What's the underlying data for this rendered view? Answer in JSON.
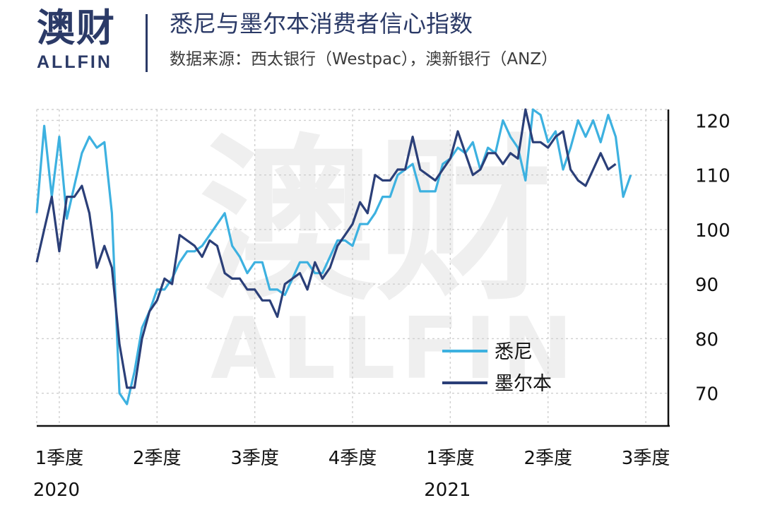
{
  "header": {
    "logo_cn": "澳财",
    "logo_en": "ALLFIN",
    "title": "悉尼与墨尔本消费者信心指数",
    "subtitle": "数据来源：西太银行（Westpac），澳新银行（ANZ）"
  },
  "watermark": {
    "cn": "澳财",
    "en": "ALLFIN"
  },
  "chart_data": {
    "type": "line",
    "title": "悉尼与墨尔本消费者信心指数",
    "ylim": [
      64,
      122
    ],
    "yticks": [
      70,
      80,
      90,
      100,
      110,
      120
    ],
    "grid": true,
    "legend_position": "bottom-right",
    "xticks": [
      {
        "label": "1季度",
        "year": "2020",
        "x": 0
      },
      {
        "label": "2季度",
        "year": "",
        "x": 13
      },
      {
        "label": "3季度",
        "year": "",
        "x": 26
      },
      {
        "label": "4季度",
        "year": "",
        "x": 39
      },
      {
        "label": "1季度",
        "year": "2021",
        "x": 52
      },
      {
        "label": "2季度",
        "year": "",
        "x": 65
      },
      {
        "label": "3季度",
        "year": "",
        "x": 78
      }
    ],
    "colors": {
      "sydney": "#3db1e0",
      "melbourne": "#2b3f78"
    },
    "series": [
      {
        "name": "悉尼",
        "values": [
          [
            -3,
            103
          ],
          [
            -2,
            119
          ],
          [
            -1,
            106
          ],
          [
            0,
            117
          ],
          [
            1,
            102
          ],
          [
            2,
            108
          ],
          [
            3,
            114
          ],
          [
            4,
            117
          ],
          [
            5,
            115
          ],
          [
            6,
            116
          ],
          [
            7,
            103
          ],
          [
            8,
            70
          ],
          [
            9,
            68
          ],
          [
            10,
            74
          ],
          [
            11,
            82
          ],
          [
            12,
            85
          ],
          [
            13,
            89
          ],
          [
            14,
            89
          ],
          [
            15,
            91
          ],
          [
            16,
            94
          ],
          [
            17,
            96
          ],
          [
            18,
            96
          ],
          [
            19,
            97
          ],
          [
            20,
            99
          ],
          [
            21,
            101
          ],
          [
            22,
            103
          ],
          [
            23,
            97
          ],
          [
            24,
            95
          ],
          [
            25,
            92
          ],
          [
            26,
            94
          ],
          [
            27,
            94
          ],
          [
            28,
            89
          ],
          [
            29,
            89
          ],
          [
            30,
            88
          ],
          [
            31,
            91
          ],
          [
            32,
            94
          ],
          [
            33,
            94
          ],
          [
            34,
            92
          ],
          [
            35,
            92
          ],
          [
            36,
            95
          ],
          [
            37,
            98
          ],
          [
            38,
            98
          ],
          [
            39,
            97
          ],
          [
            40,
            101
          ],
          [
            41,
            101
          ],
          [
            42,
            103
          ],
          [
            43,
            106
          ],
          [
            44,
            106
          ],
          [
            45,
            110
          ],
          [
            46,
            111
          ],
          [
            47,
            112
          ],
          [
            48,
            107
          ],
          [
            49,
            107
          ],
          [
            50,
            107
          ],
          [
            51,
            112
          ],
          [
            52,
            113
          ],
          [
            53,
            115
          ],
          [
            54,
            114
          ],
          [
            55,
            116
          ],
          [
            56,
            111
          ],
          [
            57,
            115
          ],
          [
            58,
            114
          ],
          [
            59,
            120
          ],
          [
            60,
            117
          ],
          [
            61,
            115
          ],
          [
            62,
            109
          ],
          [
            63,
            122
          ],
          [
            64,
            121
          ],
          [
            65,
            116
          ],
          [
            66,
            118
          ],
          [
            67,
            111
          ],
          [
            68,
            115
          ],
          [
            69,
            120
          ],
          [
            70,
            117
          ],
          [
            71,
            120
          ],
          [
            72,
            116
          ],
          [
            73,
            121
          ],
          [
            74,
            117
          ],
          [
            75,
            106
          ],
          [
            76,
            110
          ]
        ]
      },
      {
        "name": "墨尔本",
        "values": [
          [
            -3,
            94
          ],
          [
            -2,
            100
          ],
          [
            -1,
            106
          ],
          [
            0,
            96
          ],
          [
            1,
            106
          ],
          [
            2,
            106
          ],
          [
            3,
            108
          ],
          [
            4,
            103
          ],
          [
            5,
            93
          ],
          [
            6,
            97
          ],
          [
            7,
            93
          ],
          [
            8,
            79
          ],
          [
            9,
            71
          ],
          [
            10,
            71
          ],
          [
            11,
            80
          ],
          [
            12,
            85
          ],
          [
            13,
            87
          ],
          [
            14,
            91
          ],
          [
            15,
            90
          ],
          [
            16,
            99
          ],
          [
            17,
            98
          ],
          [
            18,
            97
          ],
          [
            19,
            95
          ],
          [
            20,
            98
          ],
          [
            21,
            97
          ],
          [
            22,
            92
          ],
          [
            23,
            91
          ],
          [
            24,
            91
          ],
          [
            25,
            89
          ],
          [
            26,
            89
          ],
          [
            27,
            87
          ],
          [
            28,
            87
          ],
          [
            29,
            84
          ],
          [
            30,
            90
          ],
          [
            31,
            91
          ],
          [
            32,
            92
          ],
          [
            33,
            89
          ],
          [
            34,
            94
          ],
          [
            35,
            91
          ],
          [
            36,
            93
          ],
          [
            37,
            97
          ],
          [
            38,
            99
          ],
          [
            39,
            101
          ],
          [
            40,
            105
          ],
          [
            41,
            103
          ],
          [
            42,
            110
          ],
          [
            43,
            109
          ],
          [
            44,
            109
          ],
          [
            45,
            111
          ],
          [
            46,
            111
          ],
          [
            47,
            117
          ],
          [
            48,
            111
          ],
          [
            49,
            110
          ],
          [
            50,
            109
          ],
          [
            51,
            111
          ],
          [
            52,
            113
          ],
          [
            53,
            118
          ],
          [
            54,
            114
          ],
          [
            55,
            110
          ],
          [
            56,
            111
          ],
          [
            57,
            114
          ],
          [
            58,
            114
          ],
          [
            59,
            112
          ],
          [
            60,
            114
          ],
          [
            61,
            113
          ],
          [
            62,
            122
          ],
          [
            63,
            116
          ],
          [
            64,
            116
          ],
          [
            65,
            115
          ],
          [
            66,
            117
          ],
          [
            67,
            118
          ],
          [
            68,
            111
          ],
          [
            69,
            109
          ],
          [
            70,
            108
          ],
          [
            71,
            111
          ],
          [
            72,
            114
          ],
          [
            73,
            111
          ],
          [
            74,
            112
          ]
        ]
      }
    ]
  }
}
